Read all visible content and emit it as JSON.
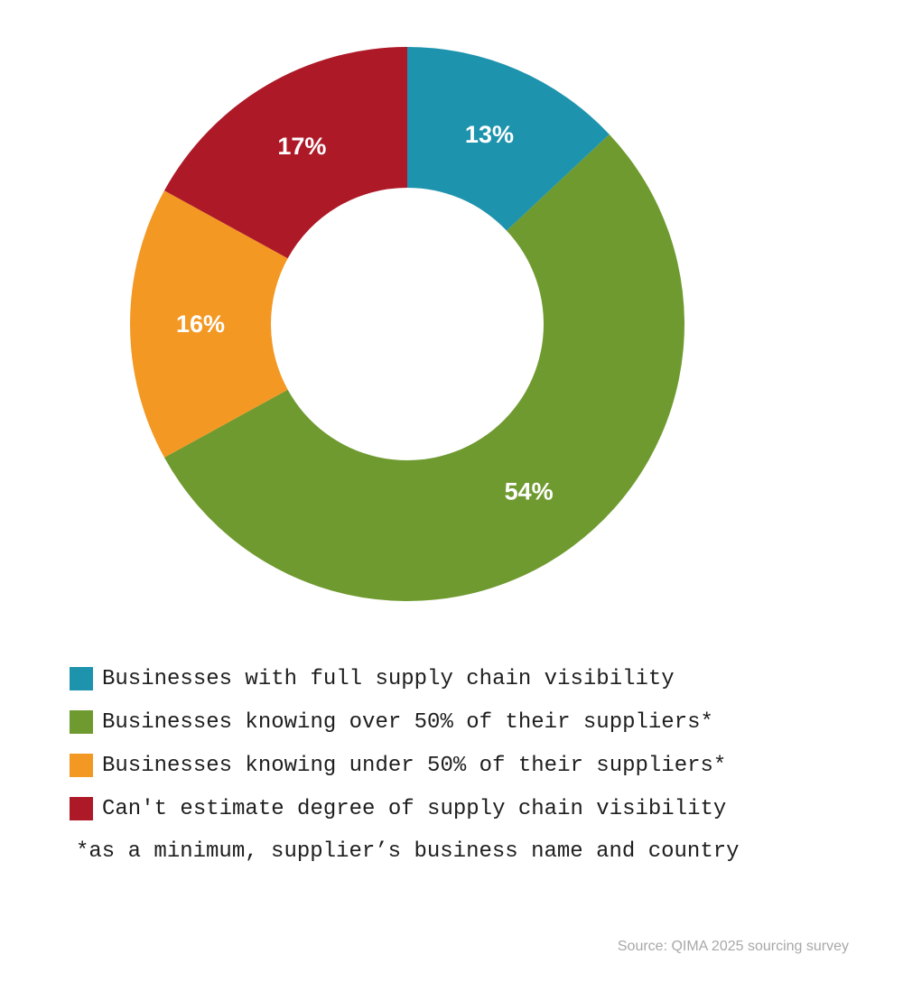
{
  "chart_data": {
    "type": "pie",
    "variant": "donut",
    "categories": [
      "Businesses with full supply chain visibility",
      "Businesses knowing over 50% of their suppliers*",
      "Businesses knowing under 50% of their suppliers*",
      "Can't estimate degree of supply chain visibility"
    ],
    "values": [
      13,
      54,
      16,
      17
    ],
    "value_labels": [
      "13%",
      "54%",
      "16%",
      "17%"
    ],
    "colors": [
      "#1e93ad",
      "#6f9a30",
      "#f39823",
      "#ae1927"
    ],
    "legend_position": "bottom-left",
    "footnote": "*as a minimum, supplier’s business name and country",
    "source": "Source: QIMA 2025 sourcing survey"
  }
}
